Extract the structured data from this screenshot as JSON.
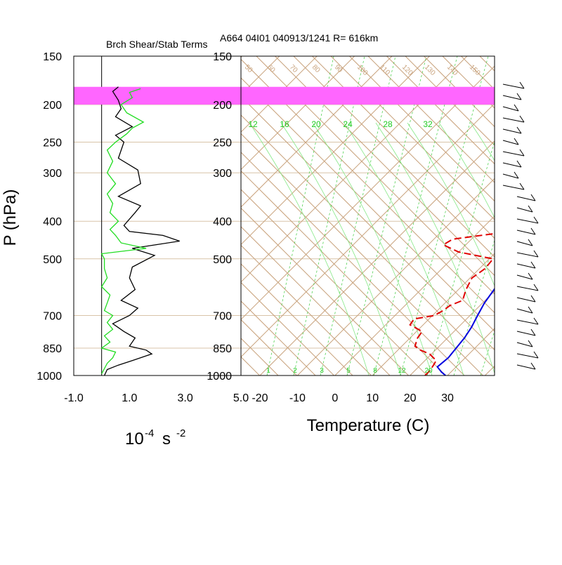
{
  "titles": {
    "left_panel_title": "Brch Shear/Stab Terms",
    "right_panel_title": "A664 04I01 040913/1241 R= 616km"
  },
  "axes": {
    "pressure_label": "P (hPa)",
    "temperature_label": "Temperature (C)",
    "units_base": "10",
    "units_exp1": "-4",
    "units_s": "s",
    "units_exp2": "-2"
  },
  "colors": {
    "temperature": "#0000e0",
    "dewpoint": "#e00000",
    "shear": "#000000",
    "stability": "#22dd22",
    "highlight_band": "#ff66ff",
    "isotherm_adiabat": "#c8a27c",
    "mixing_ratio": "#52d152"
  },
  "chart_data": [
    {
      "type": "line",
      "title": "Brch Shear/Stab Terms",
      "ylabel": "P (hPa)",
      "xlabel": "10-4 s -2",
      "y_scale": "log",
      "ylim": [
        1000,
        150
      ],
      "xlim": [
        -1.0,
        5.0
      ],
      "x_ticks": [
        "-1.0",
        "1.0",
        "3.0",
        "5.0"
      ],
      "y_ticks": [
        150,
        200,
        250,
        300,
        400,
        500,
        700,
        850,
        1000
      ],
      "series": [
        {
          "color": "black",
          "points": [
            [
              0.1,
              1000
            ],
            [
              0.2,
              965
            ],
            [
              0.6,
              940
            ],
            [
              1.1,
              915
            ],
            [
              1.8,
              880
            ],
            [
              1.6,
              860
            ],
            [
              1.0,
              840
            ],
            [
              1.2,
              800
            ],
            [
              0.8,
              770
            ],
            [
              0.4,
              735
            ],
            [
              1.0,
              700
            ],
            [
              1.3,
              670
            ],
            [
              0.7,
              640
            ],
            [
              1.2,
              600
            ],
            [
              1.0,
              560
            ],
            [
              1.1,
              525
            ],
            [
              1.9,
              490
            ],
            [
              1.1,
              470
            ],
            [
              2.8,
              450
            ],
            [
              2.2,
              435
            ],
            [
              1.0,
              425
            ],
            [
              0.8,
              410
            ],
            [
              1.2,
              380
            ],
            [
              1.4,
              365
            ],
            [
              0.6,
              345
            ],
            [
              1.4,
              320
            ],
            [
              1.3,
              295
            ],
            [
              0.6,
              275
            ],
            [
              0.8,
              250
            ],
            [
              0.5,
              240
            ],
            [
              1.1,
              228
            ],
            [
              0.5,
              215
            ],
            [
              0.7,
              205
            ],
            [
              0.6,
              195
            ],
            [
              0.4,
              185
            ],
            [
              0.6,
              180
            ]
          ]
        },
        {
          "color": "green",
          "points": [
            [
              0.0,
              990
            ],
            [
              0.1,
              960
            ],
            [
              0.2,
              930
            ],
            [
              0.4,
              900
            ],
            [
              0.5,
              870
            ],
            [
              0.0,
              850
            ],
            [
              0.3,
              820
            ],
            [
              0.1,
              790
            ],
            [
              0.4,
              760
            ],
            [
              0.2,
              730
            ],
            [
              0.4,
              700
            ],
            [
              0.1,
              680
            ],
            [
              0.2,
              650
            ],
            [
              0.3,
              620
            ],
            [
              0.0,
              590
            ],
            [
              0.2,
              560
            ],
            [
              0.1,
              530
            ],
            [
              0.1,
              500
            ],
            [
              0.0,
              485
            ],
            [
              1.6,
              470
            ],
            [
              0.7,
              455
            ],
            [
              0.5,
              435
            ],
            [
              0.3,
              420
            ],
            [
              0.6,
              400
            ],
            [
              0.3,
              380
            ],
            [
              0.4,
              360
            ],
            [
              0.2,
              340
            ],
            [
              0.5,
              320
            ],
            [
              0.2,
              300
            ],
            [
              0.4,
              280
            ],
            [
              0.2,
              262
            ],
            [
              0.5,
              250
            ],
            [
              0.9,
              238
            ],
            [
              1.1,
              230
            ],
            [
              1.5,
              222
            ],
            [
              0.9,
              210
            ],
            [
              0.7,
              200
            ],
            [
              1.1,
              192
            ],
            [
              1.0,
              186
            ],
            [
              1.4,
              182
            ]
          ]
        }
      ],
      "highlight_band_hpa": [
        180,
        200
      ]
    },
    {
      "type": "line",
      "title": "A664 04I01 040913/1241 R= 616km",
      "xlabel": "Temperature (C)",
      "ylabel": "P (hPa)",
      "y_scale": "log",
      "ylim": [
        1000,
        150
      ],
      "xlim": [
        -20,
        30
      ],
      "x_ticks": [
        "-20",
        "-10",
        "0",
        "10",
        "20",
        "30"
      ],
      "y_ticks": [
        150,
        200,
        250,
        300,
        400,
        500,
        700,
        850,
        1000
      ],
      "mixing_ratio_labels_top": [
        "12",
        "16",
        "20",
        "24",
        "28",
        "32"
      ],
      "mixing_ratio_labels_bottom": [
        "1",
        "2",
        "3",
        "5",
        "8",
        "12",
        "20"
      ],
      "adiabat_labels_top": [
        "50",
        "60",
        "70",
        "80",
        "90",
        "100",
        "110",
        "120",
        "130",
        "140",
        "150"
      ],
      "series": [
        {
          "name": "Temperature",
          "color": "blue",
          "points": [
            [
              29.5,
              1000
            ],
            [
              27.5,
              980
            ],
            [
              25.0,
              950
            ],
            [
              25.5,
              900
            ],
            [
              25.0,
              850
            ],
            [
              24.5,
              800
            ],
            [
              23.5,
              750
            ],
            [
              22.0,
              700
            ],
            [
              20.5,
              650
            ],
            [
              19.5,
              600
            ],
            [
              18.0,
              550
            ],
            [
              17.5,
              500
            ],
            [
              17.0,
              470
            ],
            [
              17.5,
              445
            ],
            [
              16.5,
              420
            ],
            [
              15.0,
              400
            ],
            [
              14.0,
              375
            ],
            [
              12.5,
              350
            ],
            [
              11.5,
              330
            ],
            [
              10.5,
              310
            ],
            [
              9.0,
              290
            ],
            [
              7.5,
              270
            ],
            [
              5.5,
              250
            ],
            [
              4.0,
              235
            ],
            [
              2.5,
              220
            ],
            [
              1.0,
              205
            ],
            [
              -0.5,
              190
            ],
            [
              -2.0,
              180
            ],
            [
              -3.5,
              170
            ]
          ]
        },
        {
          "name": "Dewpoint",
          "color": "red",
          "dashed": true,
          "points": [
            [
              24.0,
              1000
            ],
            [
              24.0,
              970
            ],
            [
              23.5,
              940
            ],
            [
              23.0,
              915
            ],
            [
              19.5,
              880
            ],
            [
              16.0,
              860
            ],
            [
              13.5,
              840
            ],
            [
              12.0,
              800
            ],
            [
              11.5,
              770
            ],
            [
              6.5,
              740
            ],
            [
              6.0,
              715
            ],
            [
              10.5,
              700
            ],
            [
              11.5,
              680
            ],
            [
              12.0,
              660
            ],
            [
              14.0,
              640
            ],
            [
              13.0,
              620
            ],
            [
              12.0,
              600
            ],
            [
              10.5,
              560
            ],
            [
              11.5,
              530
            ],
            [
              11.0,
              500
            ],
            [
              0.0,
              480
            ],
            [
              -6.0,
              460
            ],
            [
              -5.0,
              445
            ],
            [
              5.0,
              430
            ],
            [
              4.5,
              410
            ],
            [
              2.5,
              390
            ],
            [
              1.5,
              370
            ],
            [
              0.5,
              350
            ],
            [
              -3.0,
              345
            ],
            [
              -3.5,
              330
            ],
            [
              -4.0,
              320
            ],
            [
              -7.0,
              310
            ],
            [
              -11.0,
              300
            ],
            [
              -13.5,
              285
            ],
            [
              -14.0,
              265
            ],
            [
              -14.0,
              245
            ],
            [
              -14.5,
              225
            ],
            [
              -16.5,
              210
            ],
            [
              -18.5,
              198
            ]
          ]
        }
      ]
    }
  ]
}
